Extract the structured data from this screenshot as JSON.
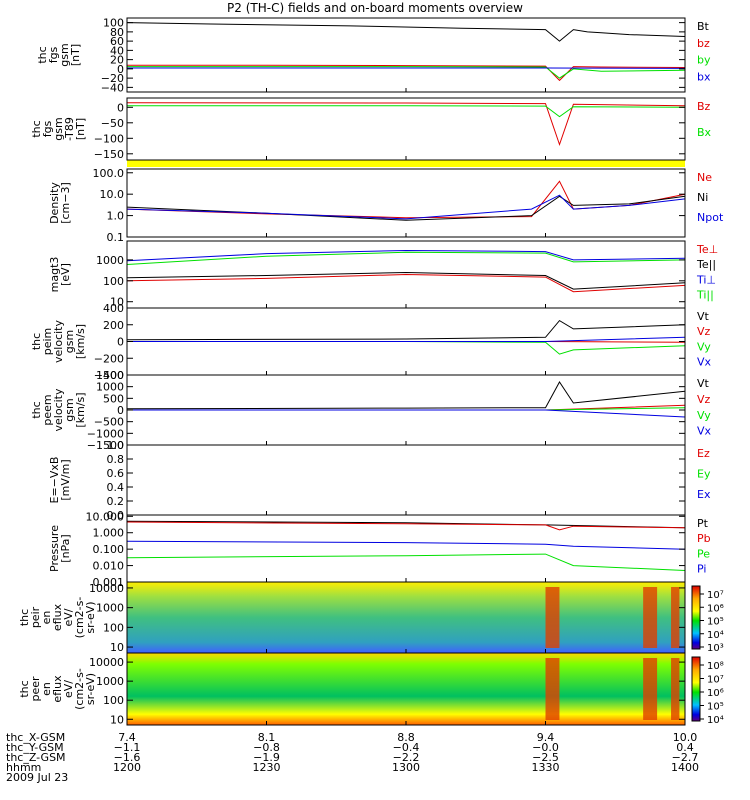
{
  "title": "P2 (TH-C) fields and on-board moments overview",
  "date": "2009 Jul 23",
  "colors": {
    "black": "#000000",
    "red": "#e00000",
    "green": "#00e000",
    "blue": "#0000e0",
    "yellow": "#ffff00"
  },
  "chart_data": [
    {
      "id": "fgs",
      "type": "line",
      "ylabel": [
        "thc",
        "fgs",
        "gsm",
        "[nT]"
      ],
      "ylim": [
        -50,
        110
      ],
      "yticks": [
        "100",
        "80",
        "60",
        "40",
        "20",
        "0",
        "−20",
        "−40"
      ],
      "ytick_values": [
        100,
        80,
        60,
        40,
        20,
        0,
        -20,
        -40
      ],
      "legend": [
        "Bt",
        "bz",
        "by",
        "bx"
      ],
      "series": [
        {
          "name": "Bt",
          "color": "black",
          "x": [
            12.0,
            12.3,
            12.8,
            13.2,
            13.5,
            13.55,
            13.6,
            13.65,
            13.7,
            13.8,
            14.0
          ],
          "values": [
            100,
            97,
            93,
            88,
            85,
            60,
            85,
            80,
            78,
            74,
            70
          ]
        },
        {
          "name": "bz",
          "color": "red",
          "x": [
            12.0,
            12.5,
            13.0,
            13.5,
            13.55,
            13.6,
            13.7,
            14.0
          ],
          "values": [
            8,
            8,
            7,
            6,
            -25,
            5,
            4,
            3
          ]
        },
        {
          "name": "by",
          "color": "green",
          "x": [
            12.0,
            12.5,
            13.0,
            13.5,
            13.55,
            13.6,
            13.7,
            14.0
          ],
          "values": [
            5,
            5,
            5,
            4,
            -20,
            0,
            -5,
            -3
          ]
        },
        {
          "name": "bx",
          "color": "blue",
          "x": [
            12.0,
            13.0,
            13.5,
            14.0
          ],
          "values": [
            2,
            2,
            2,
            1
          ]
        }
      ]
    },
    {
      "id": "fgs_t89",
      "type": "line",
      "ylabel": [
        "thc",
        "fgs",
        "gsm",
        "-T89",
        "[nT]"
      ],
      "ylim": [
        -170,
        30
      ],
      "yticks": [
        "0",
        "−50",
        "−100",
        "−150"
      ],
      "ytick_values": [
        0,
        -50,
        -100,
        -150
      ],
      "legend": [
        "Bz",
        "Bx"
      ],
      "series": [
        {
          "name": "Bz",
          "color": "red",
          "x": [
            12.0,
            13.0,
            13.5,
            13.55,
            13.6,
            14.0
          ],
          "values": [
            15,
            14,
            12,
            -120,
            10,
            5
          ]
        },
        {
          "name": "Bx",
          "color": "green",
          "x": [
            12.0,
            13.0,
            13.5,
            13.55,
            13.6,
            14.0
          ],
          "values": [
            5,
            5,
            4,
            -30,
            2,
            0
          ]
        }
      ]
    },
    {
      "id": "density",
      "type": "line",
      "ylabel": [
        "Density",
        "[cm−3]"
      ],
      "yscale": "log",
      "ylim": [
        0.1,
        150
      ],
      "yticks": [
        "100.0",
        "10.0",
        "1.0",
        "0.1"
      ],
      "ytick_values": [
        100,
        10,
        1,
        0.1
      ],
      "legend": [
        "Ne",
        "Ni",
        "Npot"
      ],
      "series": [
        {
          "name": "Ne",
          "color": "red",
          "x": [
            12.0,
            12.5,
            13.0,
            13.45,
            13.55,
            13.6,
            13.8,
            14.0
          ],
          "values": [
            2.0,
            1.2,
            0.8,
            0.9,
            40,
            2.0,
            3.0,
            10
          ]
        },
        {
          "name": "Ni",
          "color": "black",
          "x": [
            12.0,
            12.5,
            13.0,
            13.45,
            13.55,
            13.6,
            13.8,
            14.0
          ],
          "values": [
            2.5,
            1.3,
            0.6,
            1.0,
            8,
            3.0,
            3.5,
            8
          ]
        },
        {
          "name": "Npot",
          "color": "blue",
          "x": [
            12.0,
            12.5,
            13.0,
            13.45,
            13.55,
            13.6,
            13.8,
            14.0
          ],
          "values": [
            2.0,
            1.3,
            0.7,
            2.0,
            9,
            2.0,
            3.0,
            6
          ]
        }
      ]
    },
    {
      "id": "temperature",
      "type": "line",
      "ylabel": [
        "magt3",
        "[eV]"
      ],
      "yscale": "log",
      "ylim": [
        5,
        8000
      ],
      "yticks": [
        "1000",
        "100",
        "10"
      ],
      "ytick_values": [
        1000,
        100,
        10
      ],
      "legend": [
        "Te⊥",
        "Te||",
        "Ti⊥",
        "Ti||"
      ],
      "series": [
        {
          "name": "Te⊥",
          "color": "red",
          "x": [
            12.0,
            12.5,
            13.0,
            13.5,
            13.6,
            14.0
          ],
          "values": [
            100,
            130,
            200,
            150,
            30,
            60
          ]
        },
        {
          "name": "Te||",
          "color": "black",
          "x": [
            12.0,
            12.5,
            13.0,
            13.5,
            13.6,
            14.0
          ],
          "values": [
            140,
            180,
            250,
            180,
            40,
            80
          ]
        },
        {
          "name": "Ti⊥",
          "color": "blue",
          "x": [
            12.0,
            12.5,
            13.0,
            13.5,
            13.6,
            14.0
          ],
          "values": [
            900,
            2000,
            2800,
            2500,
            1000,
            1200
          ]
        },
        {
          "name": "Ti||",
          "color": "green",
          "x": [
            12.0,
            12.5,
            13.0,
            13.5,
            13.6,
            14.0
          ],
          "values": [
            600,
            1500,
            2300,
            2100,
            800,
            1000
          ]
        }
      ]
    },
    {
      "id": "peim_velocity",
      "type": "line",
      "ylabel": [
        "thc",
        "peim",
        "velocity",
        "gsm",
        "[km/s]"
      ],
      "ylim": [
        -400,
        400
      ],
      "yticks": [
        "400",
        "200",
        "0",
        "−200",
        "−400"
      ],
      "ytick_values": [
        400,
        200,
        0,
        -200,
        -400
      ],
      "legend": [
        "Vt",
        "Vz",
        "Vy",
        "Vx"
      ],
      "series": [
        {
          "name": "Vt",
          "color": "black",
          "x": [
            12.0,
            13.0,
            13.5,
            13.55,
            13.6,
            14.0
          ],
          "values": [
            20,
            30,
            50,
            250,
            150,
            200
          ]
        },
        {
          "name": "Vz",
          "color": "red",
          "x": [
            12.0,
            13.0,
            13.5,
            14.0
          ],
          "values": [
            0,
            0,
            0,
            -10
          ]
        },
        {
          "name": "Vy",
          "color": "green",
          "x": [
            12.0,
            13.0,
            13.5,
            13.55,
            13.6,
            14.0
          ],
          "values": [
            0,
            0,
            -10,
            -150,
            -100,
            -50
          ]
        },
        {
          "name": "Vx",
          "color": "blue",
          "x": [
            12.0,
            13.0,
            13.5,
            14.0
          ],
          "values": [
            0,
            0,
            0,
            50
          ]
        }
      ]
    },
    {
      "id": "peem_velocity",
      "type": "line",
      "ylabel": [
        "thc",
        "peem",
        "velocity",
        "gsm",
        "[km/s]"
      ],
      "ylim": [
        -1500,
        1500
      ],
      "yticks": [
        "1500",
        "1000",
        "500",
        "0",
        "−500",
        "−1000",
        "−1500"
      ],
      "ytick_values": [
        1500,
        1000,
        500,
        0,
        -500,
        -1000,
        -1500
      ],
      "legend": [
        "Vt",
        "Vz",
        "Vy",
        "Vx"
      ],
      "series": [
        {
          "name": "Vt",
          "color": "black",
          "x": [
            12.0,
            13.0,
            13.5,
            13.55,
            13.6,
            14.0
          ],
          "values": [
            50,
            80,
            100,
            1200,
            300,
            800
          ]
        },
        {
          "name": "Vz",
          "color": "red",
          "x": [
            12.0,
            13.0,
            13.5,
            14.0
          ],
          "values": [
            0,
            0,
            0,
            200
          ]
        },
        {
          "name": "Vy",
          "color": "green",
          "x": [
            12.0,
            13.0,
            13.5,
            14.0
          ],
          "values": [
            0,
            0,
            0,
            100
          ]
        },
        {
          "name": "Vx",
          "color": "blue",
          "x": [
            12.0,
            13.0,
            13.5,
            14.0
          ],
          "values": [
            0,
            0,
            0,
            -300
          ]
        }
      ]
    },
    {
      "id": "e_field",
      "type": "line",
      "ylabel": [
        "E=−VxB",
        "[mV/m]"
      ],
      "ylim": [
        0,
        1
      ],
      "yticks": [
        "1.0",
        "0.8",
        "0.6",
        "0.4",
        "0.2",
        "0.0"
      ],
      "ytick_values": [
        1.0,
        0.8,
        0.6,
        0.4,
        0.2,
        0.0
      ],
      "legend": [
        "Ez",
        "Ey",
        "Ex"
      ],
      "series": []
    },
    {
      "id": "pressure",
      "type": "line",
      "ylabel": [
        "Pressure",
        "[nPa]"
      ],
      "yscale": "log",
      "ylim": [
        0.001,
        12
      ],
      "yticks": [
        "10.000",
        "1.000",
        "0.100",
        "0.010",
        "0.001"
      ],
      "ytick_values": [
        10,
        1,
        0.1,
        0.01,
        0.001
      ],
      "legend": [
        "Pt",
        "Pb",
        "Pe",
        "Pi"
      ],
      "series": [
        {
          "name": "Pt",
          "color": "black",
          "x": [
            12.0,
            13.0,
            13.5,
            14.0
          ],
          "values": [
            5,
            4,
            3,
            2
          ]
        },
        {
          "name": "Pb",
          "color": "red",
          "x": [
            12.0,
            13.0,
            13.5,
            13.55,
            13.6,
            14.0
          ],
          "values": [
            4.5,
            3.5,
            3,
            1.5,
            2.5,
            2
          ]
        },
        {
          "name": "Pe",
          "color": "green",
          "x": [
            12.0,
            13.0,
            13.5,
            13.6,
            14.0
          ],
          "values": [
            0.03,
            0.04,
            0.05,
            0.01,
            0.005
          ]
        },
        {
          "name": "Pi",
          "color": "blue",
          "x": [
            12.0,
            13.0,
            13.5,
            13.6,
            14.0
          ],
          "values": [
            0.3,
            0.25,
            0.2,
            0.15,
            0.1
          ]
        }
      ]
    },
    {
      "id": "peir_eflux",
      "type": "heatmap",
      "ylabel": [
        "thc",
        "peir",
        "en",
        "eflux",
        "eV/",
        "(cm2-s-",
        "sr-eV)"
      ],
      "yscale": "log",
      "ylim": [
        5,
        20000
      ],
      "yticks": [
        "10000",
        "1000",
        "100",
        "10"
      ],
      "ytick_values": [
        10000,
        1000,
        100,
        10
      ],
      "colorbar": [
        "10⁷",
        "10⁶",
        "10⁵",
        "10⁴",
        "10³"
      ],
      "colorbar_range": [
        1000,
        10000000
      ]
    },
    {
      "id": "peer_eflux",
      "type": "heatmap",
      "ylabel": [
        "thc",
        "peer",
        "en",
        "eflux",
        "eV/",
        "(cm2-s-",
        "sr-eV)"
      ],
      "yscale": "log",
      "ylim": [
        5,
        30000
      ],
      "yticks": [
        "10000",
        "1000",
        "100",
        "10"
      ],
      "ytick_values": [
        10000,
        1000,
        100,
        10
      ],
      "colorbar": [
        "10⁸",
        "10⁷",
        "10⁶",
        "10⁵",
        "10⁴"
      ],
      "colorbar_range": [
        10000,
        100000000
      ]
    }
  ],
  "x_axis": {
    "range": [
      12.0,
      14.0
    ],
    "rows": [
      {
        "label": "thc_X-GSM",
        "values": [
          "7.4",
          "8.1",
          "8.8",
          "9.4",
          "10.0"
        ]
      },
      {
        "label": "thc_Y-GSM",
        "values": [
          "−1.1",
          "−0.8",
          "−0.4",
          "−0.0",
          "0.4"
        ]
      },
      {
        "label": "thc_Z-GSM",
        "values": [
          "−1.6",
          "−1.9",
          "−2.2",
          "−2.5",
          "−2.7"
        ]
      },
      {
        "label": "hhmm",
        "values": [
          "1200",
          "1230",
          "1300",
          "1330",
          "1400"
        ]
      }
    ]
  }
}
